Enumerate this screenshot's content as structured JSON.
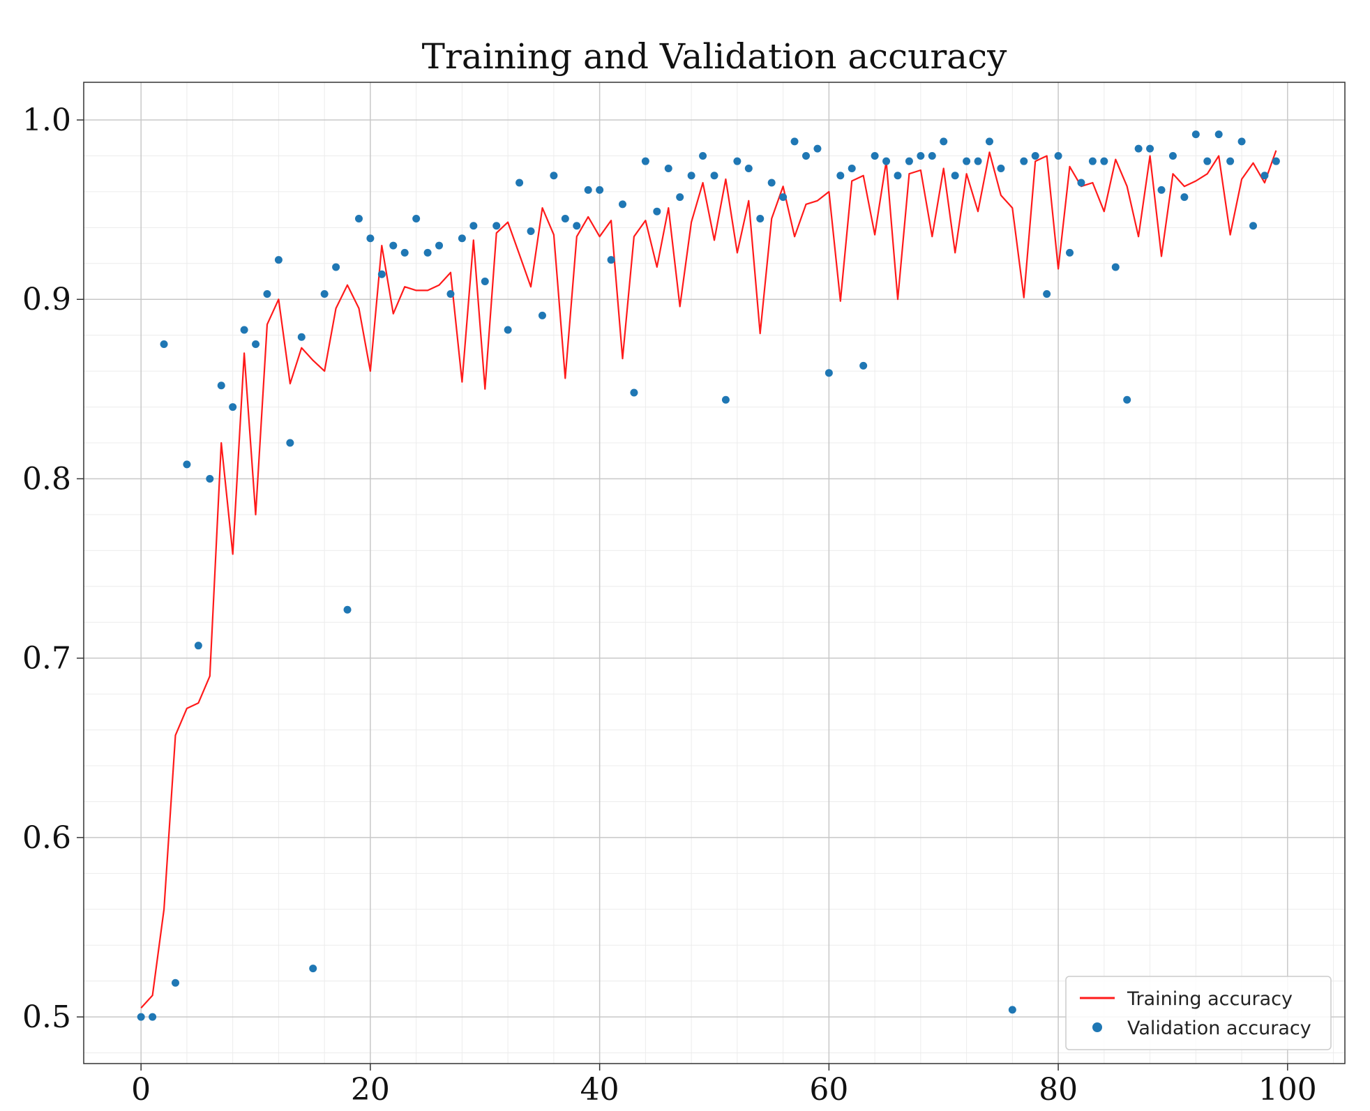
{
  "chart_data": {
    "type": "line+scatter",
    "title": "Training and Validation accuracy",
    "xlabel": "",
    "ylabel": "",
    "xlim": [
      -5,
      105
    ],
    "ylim": [
      0.474,
      1.021
    ],
    "xticks": [
      0,
      20,
      40,
      60,
      80,
      100
    ],
    "xtick_labels": [
      "0",
      "20",
      "40",
      "60",
      "80",
      "100"
    ],
    "yticks": [
      0.5,
      0.6,
      0.7,
      0.8,
      0.9,
      1.0
    ],
    "ytick_labels": [
      "0.5",
      "0.6",
      "0.7",
      "0.8",
      "0.9",
      "1.0"
    ],
    "grid": true,
    "legend_position": "lower-right",
    "colors": {
      "training": "#ff1a1a",
      "validation": "#1f77b4",
      "grid_major": "#c8c8c8",
      "grid_minor": "#ececec"
    },
    "series": [
      {
        "name": "Training accuracy",
        "style": "line",
        "x": [
          0,
          1,
          2,
          3,
          4,
          5,
          6,
          7,
          8,
          9,
          10,
          11,
          12,
          13,
          14,
          15,
          16,
          17,
          18,
          19,
          20,
          21,
          22,
          23,
          24,
          25,
          26,
          27,
          28,
          29,
          30,
          31,
          32,
          33,
          34,
          35,
          36,
          37,
          38,
          39,
          40,
          41,
          42,
          43,
          44,
          45,
          46,
          47,
          48,
          49,
          50,
          51,
          52,
          53,
          54,
          55,
          56,
          57,
          58,
          59,
          60,
          61,
          62,
          63,
          64,
          65,
          66,
          67,
          68,
          69,
          70,
          71,
          72,
          73,
          74,
          75,
          76,
          77,
          78,
          79,
          80,
          81,
          82,
          83,
          84,
          85,
          86,
          87,
          88,
          89,
          90,
          91,
          92,
          93,
          94,
          95,
          96,
          97,
          98,
          99
        ],
        "values": [
          0.505,
          0.512,
          0.56,
          0.657,
          0.672,
          0.675,
          0.69,
          0.82,
          0.758,
          0.87,
          0.78,
          0.886,
          0.9,
          0.853,
          0.873,
          0.866,
          0.86,
          0.895,
          0.908,
          0.895,
          0.86,
          0.93,
          0.892,
          0.907,
          0.905,
          0.905,
          0.908,
          0.915,
          0.854,
          0.933,
          0.85,
          0.937,
          0.943,
          0.925,
          0.907,
          0.951,
          0.936,
          0.856,
          0.935,
          0.946,
          0.935,
          0.944,
          0.867,
          0.935,
          0.944,
          0.918,
          0.951,
          0.896,
          0.943,
          0.965,
          0.933,
          0.967,
          0.926,
          0.955,
          0.881,
          0.945,
          0.963,
          0.935,
          0.953,
          0.955,
          0.96,
          0.899,
          0.966,
          0.969,
          0.936,
          0.977,
          0.9,
          0.97,
          0.972,
          0.935,
          0.973,
          0.926,
          0.97,
          0.949,
          0.982,
          0.958,
          0.951,
          0.901,
          0.977,
          0.98,
          0.917,
          0.974,
          0.963,
          0.965,
          0.949,
          0.978,
          0.963,
          0.935,
          0.98,
          0.924,
          0.97,
          0.963,
          0.966,
          0.97,
          0.98,
          0.936,
          0.967,
          0.976,
          0.965,
          0.983
        ]
      },
      {
        "name": "Validation accuracy",
        "style": "scatter",
        "x": [
          0,
          1,
          2,
          3,
          4,
          5,
          6,
          7,
          8,
          9,
          10,
          11,
          12,
          13,
          14,
          15,
          16,
          17,
          18,
          19,
          20,
          21,
          22,
          23,
          24,
          25,
          26,
          27,
          28,
          29,
          30,
          31,
          32,
          33,
          34,
          35,
          36,
          37,
          38,
          39,
          40,
          41,
          42,
          43,
          44,
          45,
          46,
          47,
          48,
          49,
          50,
          51,
          52,
          53,
          54,
          55,
          56,
          57,
          58,
          59,
          60,
          61,
          62,
          63,
          64,
          65,
          66,
          67,
          68,
          69,
          70,
          71,
          72,
          73,
          74,
          75,
          76,
          77,
          78,
          79,
          80,
          81,
          82,
          83,
          84,
          85,
          86,
          87,
          88,
          89,
          90,
          91,
          92,
          93,
          94,
          95,
          96,
          97,
          98,
          99
        ],
        "values": [
          0.5,
          0.5,
          0.875,
          0.519,
          0.808,
          0.707,
          0.8,
          0.852,
          0.84,
          0.883,
          0.875,
          0.903,
          0.922,
          0.82,
          0.879,
          0.527,
          0.903,
          0.918,
          0.727,
          0.945,
          0.934,
          0.914,
          0.93,
          0.926,
          0.945,
          0.926,
          0.93,
          0.903,
          0.934,
          0.941,
          0.91,
          0.941,
          0.883,
          0.965,
          0.938,
          0.891,
          0.969,
          0.945,
          0.941,
          0.961,
          0.961,
          0.922,
          0.953,
          0.848,
          0.977,
          0.949,
          0.973,
          0.957,
          0.969,
          0.98,
          0.969,
          0.844,
          0.977,
          0.973,
          0.945,
          0.965,
          0.957,
          0.988,
          0.98,
          0.984,
          0.859,
          0.969,
          0.973,
          0.863,
          0.98,
          0.977,
          0.969,
          0.977,
          0.98,
          0.98,
          0.988,
          0.969,
          0.977,
          0.977,
          0.988,
          0.973,
          0.504,
          0.977,
          0.98,
          0.903,
          0.98,
          0.926,
          0.965,
          0.977,
          0.977,
          0.918,
          0.844,
          0.984,
          0.984,
          0.961,
          0.98,
          0.957,
          0.992,
          0.977,
          0.992,
          0.977,
          0.988,
          0.941,
          0.969,
          0.977
        ]
      }
    ]
  }
}
